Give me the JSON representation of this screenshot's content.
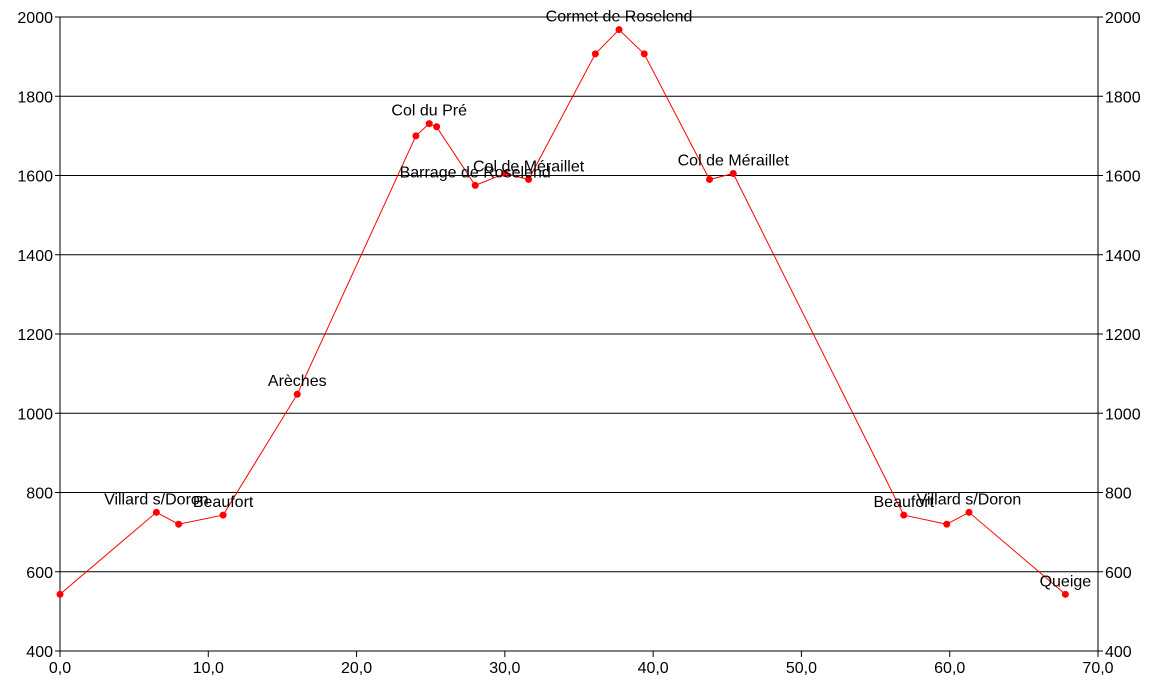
{
  "chart_data": {
    "type": "line",
    "title": "",
    "xlabel": "",
    "ylabel": "",
    "xlim": [
      0,
      70
    ],
    "ylim": [
      400,
      2000
    ],
    "x_ticks": [
      "0,0",
      "10,0",
      "20,0",
      "30,0",
      "40,0",
      "50,0",
      "60,0",
      "70,0"
    ],
    "y_ticks": [
      "400",
      "600",
      "800",
      "1000",
      "1200",
      "1400",
      "1600",
      "1800",
      "2000"
    ],
    "grid": "horizontal",
    "line_color": "#ff0000",
    "marker_color": "#ff0000",
    "series": [
      {
        "points": [
          {
            "x": 0.0,
            "y": 543,
            "label": ""
          },
          {
            "x": 6.5,
            "y": 750,
            "label": "Villard s/Doron"
          },
          {
            "x": 8.0,
            "y": 720,
            "label": ""
          },
          {
            "x": 11.0,
            "y": 743,
            "label": "Beaufort"
          },
          {
            "x": 16.0,
            "y": 1048,
            "label": "Arèches"
          },
          {
            "x": 24.0,
            "y": 1700,
            "label": ""
          },
          {
            "x": 24.9,
            "y": 1731,
            "label": "Col du Pré"
          },
          {
            "x": 25.4,
            "y": 1723,
            "label": ""
          },
          {
            "x": 28.0,
            "y": 1575,
            "label": "Barrage de Roselend"
          },
          {
            "x": 30.0,
            "y": 1605,
            "label": ""
          },
          {
            "x": 31.6,
            "y": 1590,
            "label": "Col de Méraillet"
          },
          {
            "x": 36.1,
            "y": 1907,
            "label": ""
          },
          {
            "x": 37.7,
            "y": 1968,
            "label": "Cormet de Roselend"
          },
          {
            "x": 39.4,
            "y": 1907,
            "label": ""
          },
          {
            "x": 43.8,
            "y": 1590,
            "label": ""
          },
          {
            "x": 45.4,
            "y": 1605,
            "label": "Col de Méraillet"
          },
          {
            "x": 56.9,
            "y": 743,
            "label": "Beaufort"
          },
          {
            "x": 59.8,
            "y": 720,
            "label": ""
          },
          {
            "x": 61.3,
            "y": 750,
            "label": "Villard s/Doron"
          },
          {
            "x": 67.8,
            "y": 543,
            "label": "Queige"
          }
        ]
      }
    ]
  }
}
